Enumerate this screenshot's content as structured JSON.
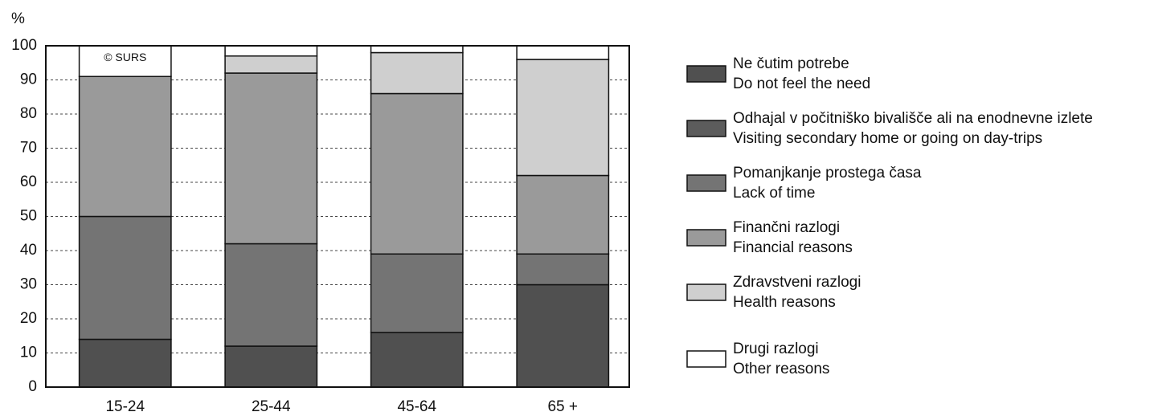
{
  "chart_data": {
    "type": "stacked_bar",
    "y_label": "%",
    "annotation": "© SURS",
    "categories": [
      "15-24",
      "25-44",
      "45-64",
      "65 +"
    ],
    "series": [
      {
        "name": "Ne čutim potrebe",
        "name_en": "Do not feel the need",
        "color": "#505050",
        "values": [
          14,
          12,
          16,
          30
        ]
      },
      {
        "name": "Odhajal v počitniško bivališče ali na enodnevne izlete",
        "name_en": "Visiting secondary home or going on day-trips",
        "color": "#5c5c5c",
        "values": [
          0,
          0,
          0,
          0
        ]
      },
      {
        "name": "Pomanjkanje prostega časa",
        "name_en": "Lack of time",
        "color": "#747474",
        "values": [
          36,
          30,
          23,
          9
        ]
      },
      {
        "name": "Finančni razlogi",
        "name_en": "Financial reasons",
        "color": "#9a9a9a",
        "values": [
          41,
          50,
          47,
          23
        ]
      },
      {
        "name": "Zdravstveni razlogi",
        "name_en": "Health reasons",
        "color": "#cfcfcf",
        "values": [
          0,
          5,
          12,
          34
        ]
      },
      {
        "name": "Drugi razlogi",
        "name_en": "Other reasons",
        "color": "#ffffff",
        "values": [
          9,
          3,
          2,
          4
        ]
      }
    ],
    "ylim": [
      0,
      100
    ],
    "yticks": [
      0,
      10,
      20,
      30,
      40,
      50,
      60,
      70,
      80,
      90,
      100
    ],
    "grid": true
  }
}
